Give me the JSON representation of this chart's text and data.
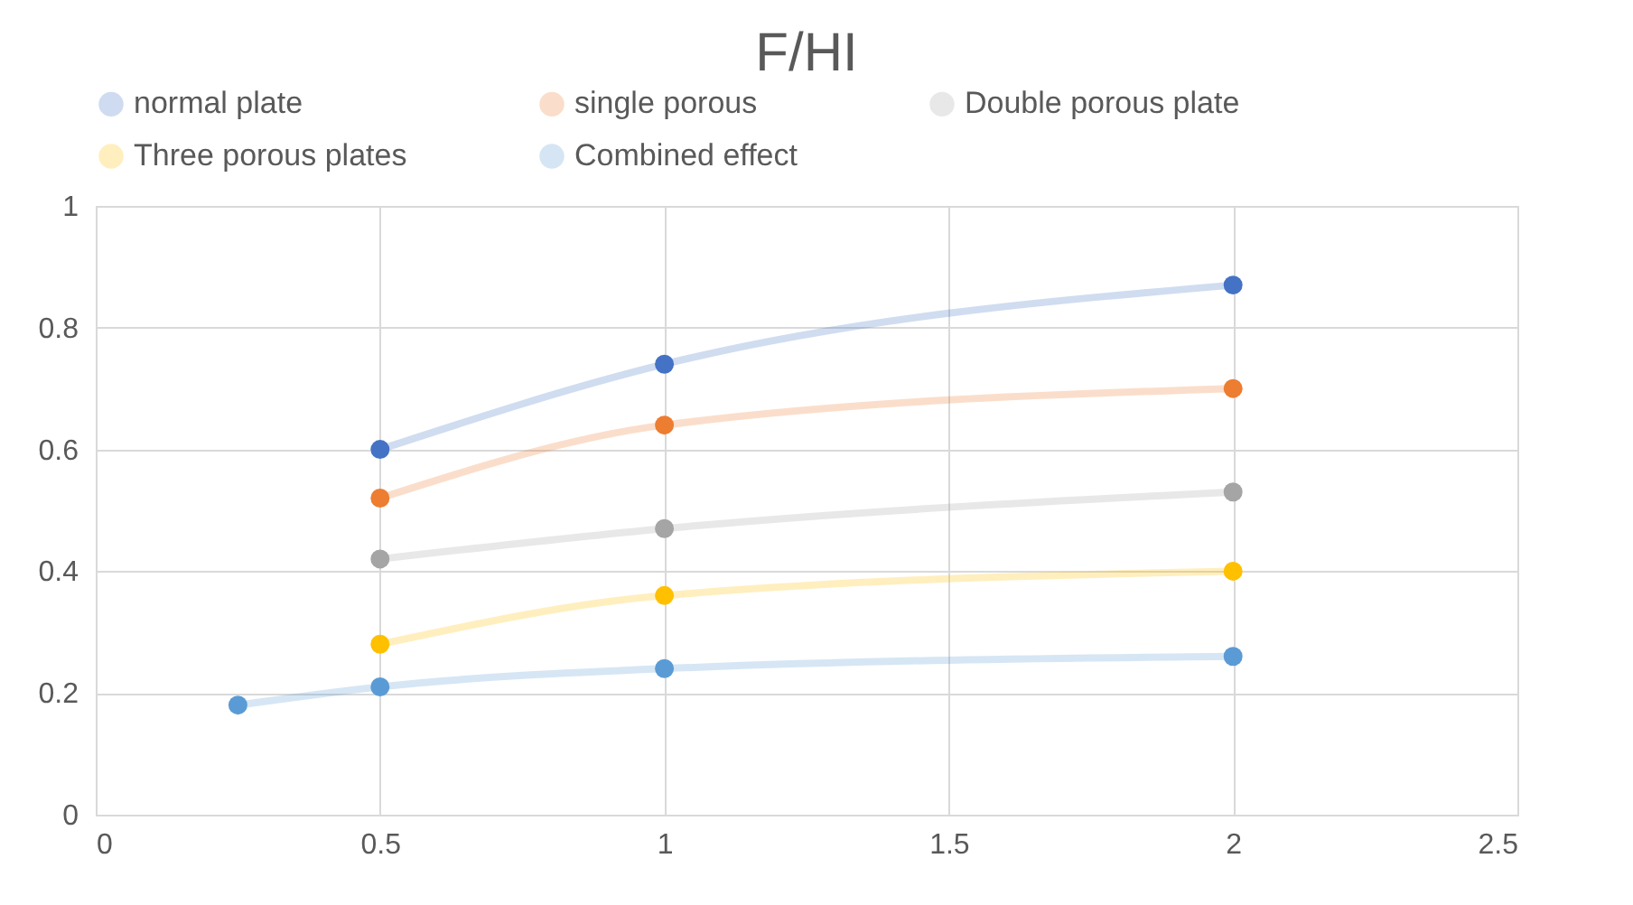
{
  "chart_data": {
    "type": "line",
    "title": "F/HI",
    "xlim": [
      0,
      2.5
    ],
    "xticks": [
      0,
      0.5,
      1,
      1.5,
      2,
      2.5
    ],
    "ylim": [
      0,
      1
    ],
    "yticks": [
      0,
      0.2,
      0.4,
      0.6,
      0.8,
      1
    ],
    "grid": true,
    "legend": "top",
    "marker": "circle",
    "line_style": "solid",
    "series": [
      {
        "name": "normal plate",
        "color": "#4472c4",
        "x": [
          0.5,
          1,
          2
        ],
        "values": [
          0.6,
          0.74,
          0.87
        ]
      },
      {
        "name": "single porous",
        "color": "#ed7d31",
        "x": [
          0.5,
          1,
          2
        ],
        "values": [
          0.52,
          0.64,
          0.7
        ]
      },
      {
        "name": "Double porous plate",
        "color": "#a5a5a5",
        "x": [
          0.5,
          1,
          2
        ],
        "values": [
          0.42,
          0.47,
          0.53
        ]
      },
      {
        "name": "Three porous plates",
        "color": "#ffc000",
        "x": [
          0.5,
          1,
          2
        ],
        "values": [
          0.28,
          0.36,
          0.4
        ]
      },
      {
        "name": "Combined effect",
        "color": "#5b9bd5",
        "x": [
          0.25,
          0.5,
          1,
          2
        ],
        "values": [
          0.18,
          0.21,
          0.24,
          0.26
        ]
      }
    ]
  }
}
